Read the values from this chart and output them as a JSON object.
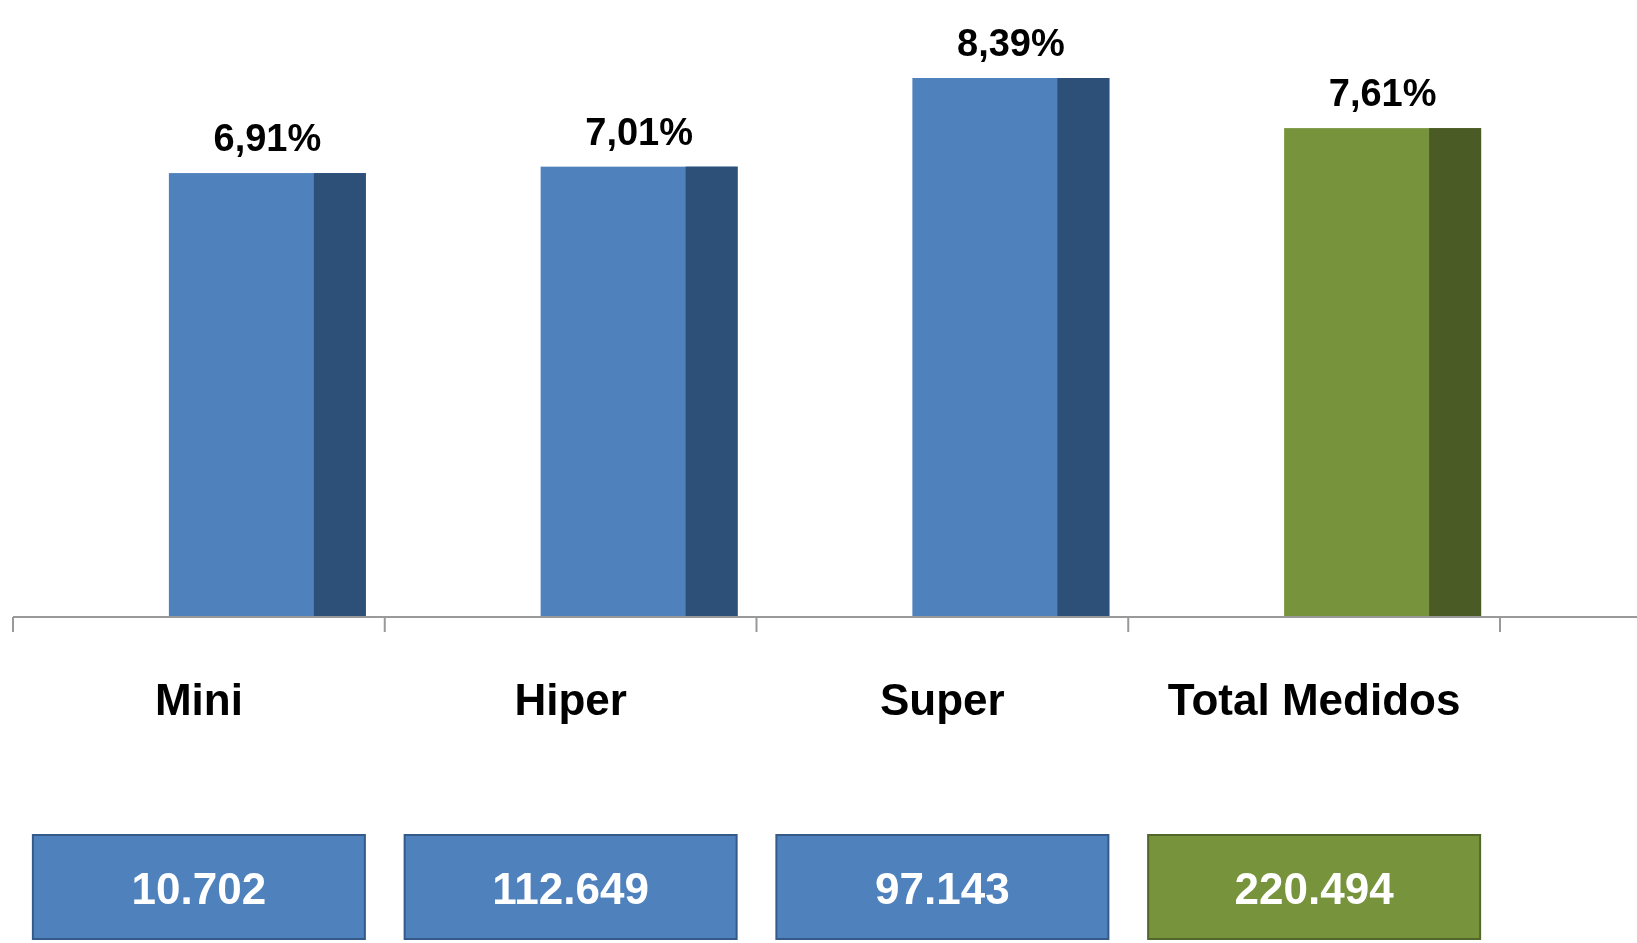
{
  "chart_data": {
    "type": "bar",
    "categories": [
      "Mini",
      "Hiper",
      "Super",
      "Total Medidos"
    ],
    "values": [
      6.91,
      7.01,
      8.39,
      7.61
    ],
    "colors": [
      "#4f81bd",
      "#4f81bd",
      "#4f81bd",
      "#77933c"
    ],
    "value_labels": [
      "6,91%",
      "7,01%",
      "8,39%",
      "7,61%"
    ],
    "annotations": [
      "10.702",
      "112.649",
      "97.143",
      "220.494"
    ]
  }
}
